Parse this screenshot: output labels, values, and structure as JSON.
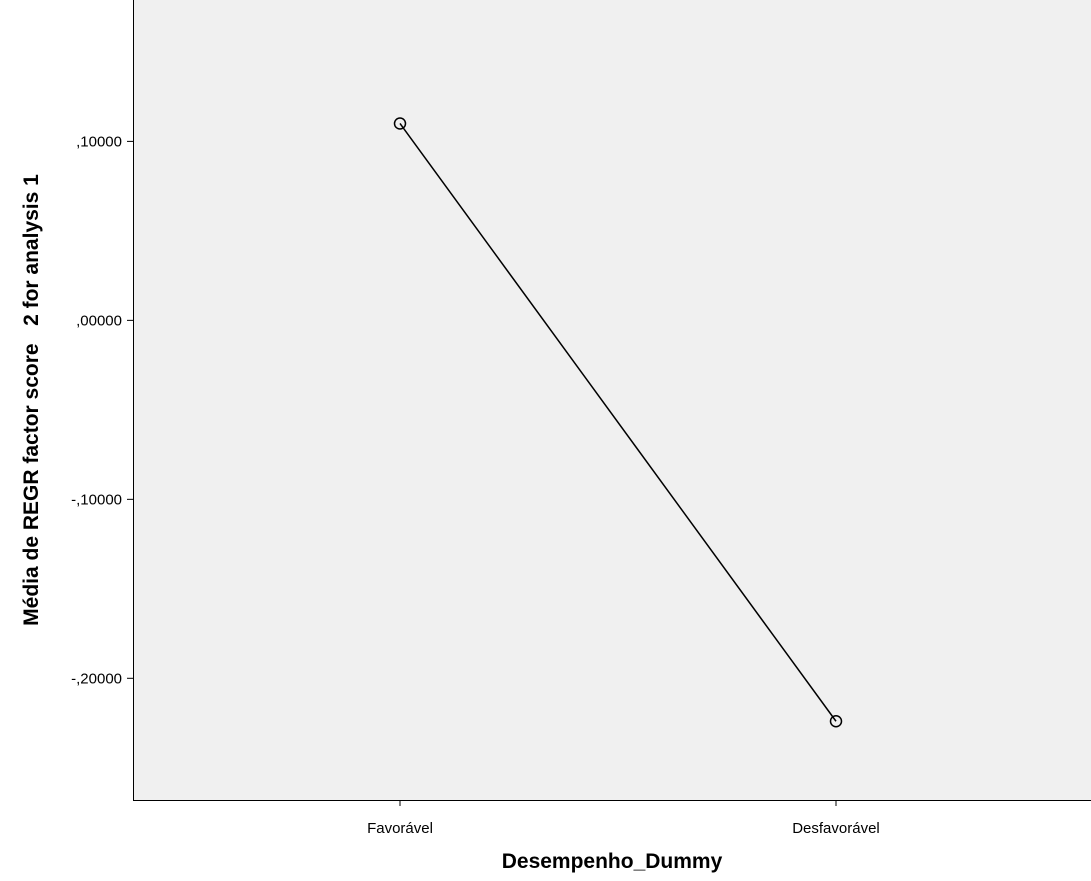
{
  "chart_data": {
    "type": "line",
    "title": "",
    "xlabel": "Desempenho_Dummy",
    "ylabel": "Média de REGR factor score   2 for analysis 1",
    "categories": [
      "Favorável",
      "Desfavorável"
    ],
    "series": [
      {
        "values": [
          0.11,
          -0.224
        ]
      }
    ],
    "ylim": [
      -0.268,
      0.179
    ],
    "yticks": [
      0.1,
      0.0,
      -0.1,
      -0.2
    ],
    "ytick_labels": [
      ",10000",
      ",00000",
      "-,10000",
      "-,20000"
    ],
    "marker": "open-circle",
    "grid": false,
    "colors": {
      "plot_bg": "#f0f0f0",
      "line": "#000000",
      "axis": "#000000"
    }
  }
}
